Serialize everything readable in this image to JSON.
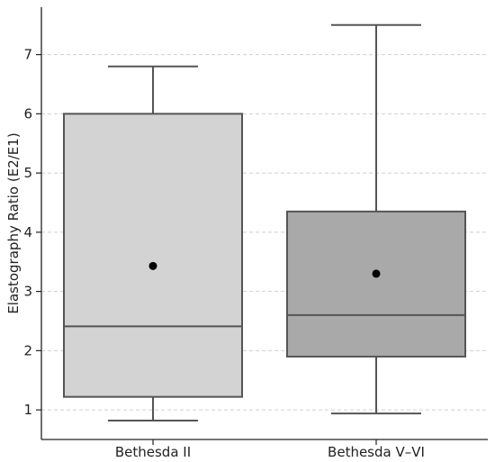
{
  "chart_data": {
    "type": "box",
    "title": "",
    "xlabel": "",
    "ylabel": "Elastography Ratio (E2/E1)",
    "categories": [
      "Bethesda II",
      "Bethesda V–VI"
    ],
    "ylim": [
      0.5,
      7.8
    ],
    "yticks": [
      1,
      2,
      3,
      4,
      5,
      6,
      7
    ],
    "grid": "horizontal dashed",
    "series": [
      {
        "category": "Bethesda II",
        "whisker_low": 0.82,
        "q1": 1.22,
        "median": 2.41,
        "q3": 6.0,
        "whisker_high": 6.8,
        "mean": 3.43,
        "color": "#d3d3d3"
      },
      {
        "category": "Bethesda V–VI",
        "whisker_low": 0.94,
        "q1": 1.9,
        "median": 2.6,
        "q3": 4.35,
        "whisker_high": 7.5,
        "mean": 3.3,
        "color": "#a9a9a9"
      }
    ]
  }
}
